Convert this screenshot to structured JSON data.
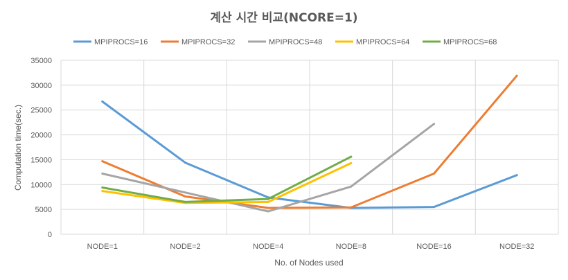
{
  "chart_data": {
    "type": "line",
    "title": "계산 시간 비교(NCORE=1)",
    "xlabel": "No. of Nodes used",
    "ylabel": "Computation time(sec.)",
    "categories": [
      "NODE=1",
      "NODE=2",
      "NODE=4",
      "NODE=8",
      "NODE=16",
      "NODE=32"
    ],
    "ylim": [
      0,
      35000
    ],
    "yticks": [
      0,
      5000,
      10000,
      15000,
      20000,
      25000,
      30000,
      35000
    ],
    "grid": true,
    "legend_position": "top",
    "series": [
      {
        "name": "MPIPROCS=16",
        "color": "#5B9BD5",
        "values": [
          26700,
          14400,
          7400,
          5300,
          5500,
          11900
        ]
      },
      {
        "name": "MPIPROCS=32",
        "color": "#ED7D31",
        "values": [
          14700,
          7600,
          5300,
          5400,
          12200,
          31900
        ]
      },
      {
        "name": "MPIPROCS=48",
        "color": "#A5A5A5",
        "values": [
          12200,
          8400,
          4600,
          9600,
          22200,
          null
        ]
      },
      {
        "name": "MPIPROCS=64",
        "color": "#FFC000",
        "values": [
          8700,
          6300,
          6500,
          14300,
          null,
          null
        ]
      },
      {
        "name": "MPIPROCS=68",
        "color": "#70AD47",
        "values": [
          9400,
          6500,
          7100,
          15600,
          null,
          null
        ]
      }
    ]
  }
}
